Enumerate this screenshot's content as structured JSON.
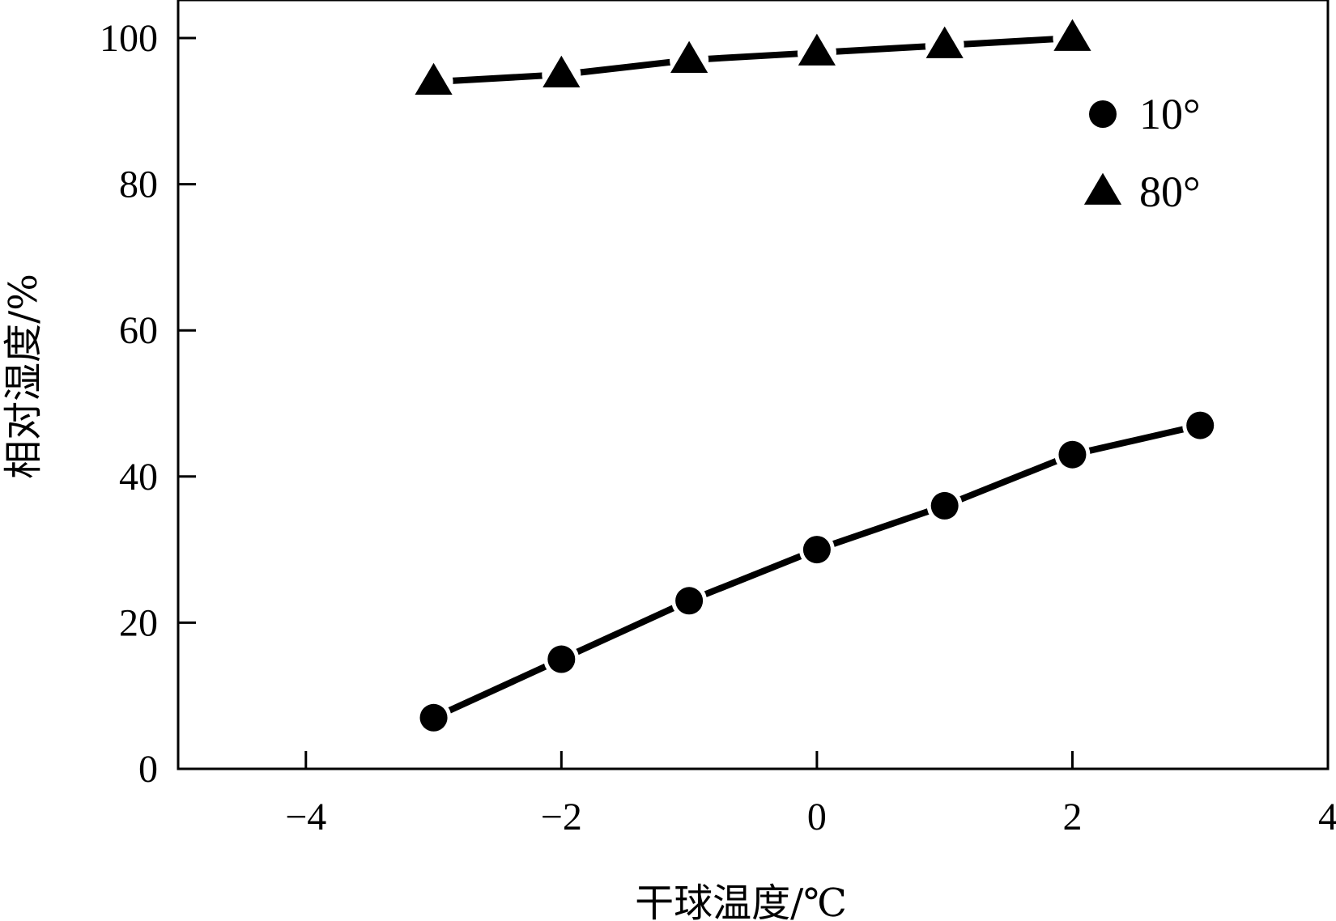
{
  "chart_data": {
    "type": "line",
    "title": "",
    "xlabel": "干球温度/℃",
    "ylabel": "相对湿度/%",
    "xlim": [
      -5,
      4
    ],
    "ylim": [
      0,
      100
    ],
    "x_ticks": [
      -4,
      -2,
      0,
      2,
      4
    ],
    "x_tick_labels": [
      "−4",
      "−2",
      "0",
      "2",
      "4"
    ],
    "y_ticks": [
      0,
      20,
      40,
      60,
      80,
      100
    ],
    "y_tick_labels": [
      "0",
      "20",
      "40",
      "60",
      "80",
      "100"
    ],
    "grid": false,
    "legend_position": "top-right",
    "series": [
      {
        "name": "10°",
        "marker": "circle",
        "color": "#000000",
        "x": [
          -3,
          -2,
          -1,
          0,
          1,
          2,
          3
        ],
        "y": [
          7,
          15,
          23,
          30,
          36,
          43,
          47
        ]
      },
      {
        "name": "80°",
        "marker": "triangle",
        "color": "#000000",
        "x": [
          -3,
          -2,
          -1,
          0,
          1,
          2
        ],
        "y": [
          94,
          95,
          97,
          98,
          99,
          100
        ]
      }
    ]
  }
}
